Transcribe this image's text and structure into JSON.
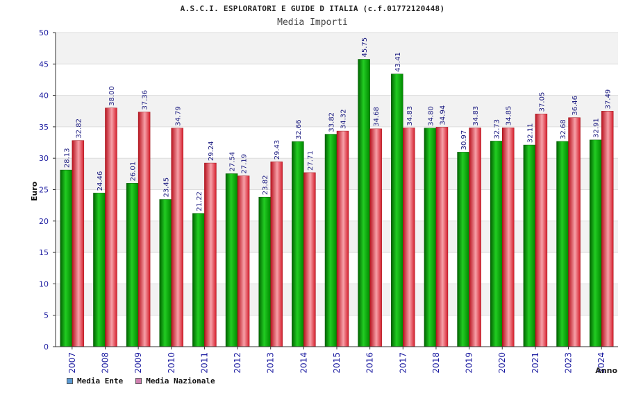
{
  "chart_data": {
    "type": "bar",
    "title": "A.S.C.I. ESPLORATORI E GUIDE D ITALIA (c.f.01772120448)",
    "subtitle": "Media Importi",
    "xlabel": "Anno",
    "ylabel": "Euro",
    "ylim": [
      0,
      50
    ],
    "yticks": [
      0,
      5,
      10,
      15,
      20,
      25,
      30,
      35,
      40,
      45,
      50
    ],
    "grid": true,
    "legend_position": "bottom-left",
    "categories": [
      "2007",
      "2008",
      "2009",
      "2010",
      "2011",
      "2012",
      "2013",
      "2014",
      "2015",
      "2016",
      "2017",
      "2018",
      "2019",
      "2020",
      "2021",
      "2023",
      "2024"
    ],
    "series": [
      {
        "name": "Media Ente",
        "color": "#00a000",
        "legend_color": "#5b9bd5",
        "values": [
          28.13,
          24.46,
          26.01,
          23.45,
          21.22,
          27.54,
          23.82,
          32.66,
          33.82,
          45.75,
          43.41,
          34.8,
          30.97,
          32.73,
          32.11,
          32.68,
          32.91
        ],
        "labels": [
          "28.13",
          "24.46",
          "26.01",
          "23.45",
          "21.22",
          "27.54",
          "23.82",
          "32.66",
          "33.82",
          "45.75",
          "43.41",
          "34.80",
          "30.97",
          "32.73",
          "32.11",
          "32.68",
          "32.91"
        ]
      },
      {
        "name": "Media Nazionale",
        "color": "#e8303a",
        "legend_color": "#d080b0",
        "values": [
          32.82,
          38.0,
          37.36,
          34.79,
          29.24,
          27.19,
          29.43,
          27.71,
          34.32,
          34.68,
          34.83,
          34.94,
          34.83,
          34.85,
          37.05,
          36.46,
          37.49
        ],
        "labels": [
          "32.82",
          "38.00",
          "37.36",
          "34.79",
          "29.24",
          "27.19",
          "29.43",
          "27.71",
          "34.32",
          "34.68",
          "34.83",
          "34.94",
          "34.83",
          "34.85",
          "37.05",
          "36.46",
          "37.49"
        ]
      }
    ]
  }
}
